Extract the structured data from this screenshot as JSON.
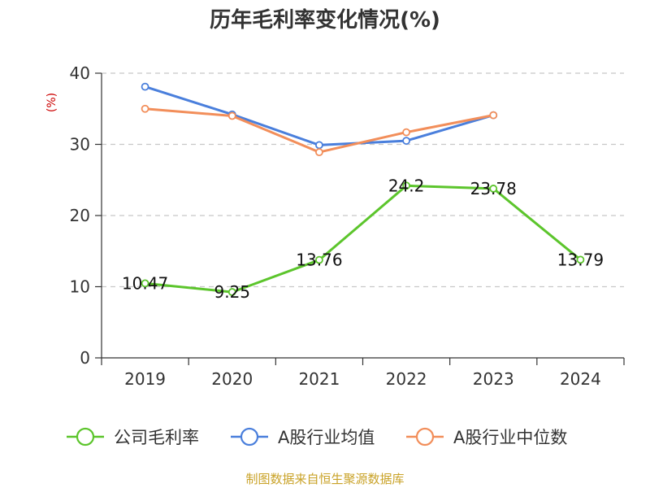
{
  "chart_data": {
    "type": "line",
    "title": "历年毛利率变化情况(%)",
    "ylabel": "(%)",
    "xlabel": "",
    "categories": [
      "2019",
      "2020",
      "2021",
      "2022",
      "2023",
      "2024"
    ],
    "ylim": [
      0,
      40
    ],
    "yticks": [
      0,
      10,
      20,
      30,
      40
    ],
    "grid": true,
    "legend_position": "bottom",
    "series": [
      {
        "name": "公司毛利率",
        "color": "#5cc52c",
        "values": [
          10.47,
          9.25,
          13.76,
          24.2,
          23.78,
          13.79
        ],
        "labels": [
          "10.47",
          "9.25",
          "13.76",
          "24.2",
          "23.78",
          "13.79"
        ]
      },
      {
        "name": "A股行业均值",
        "color": "#4a7fdc",
        "values": [
          38.1,
          34.2,
          29.9,
          30.5,
          34.1,
          null
        ]
      },
      {
        "name": "A股行业中位数",
        "color": "#f28e5a",
        "values": [
          35.0,
          34.0,
          28.9,
          31.7,
          34.1,
          null
        ]
      }
    ]
  },
  "footer": {
    "source": "制图数据来自恒生聚源数据库"
  }
}
